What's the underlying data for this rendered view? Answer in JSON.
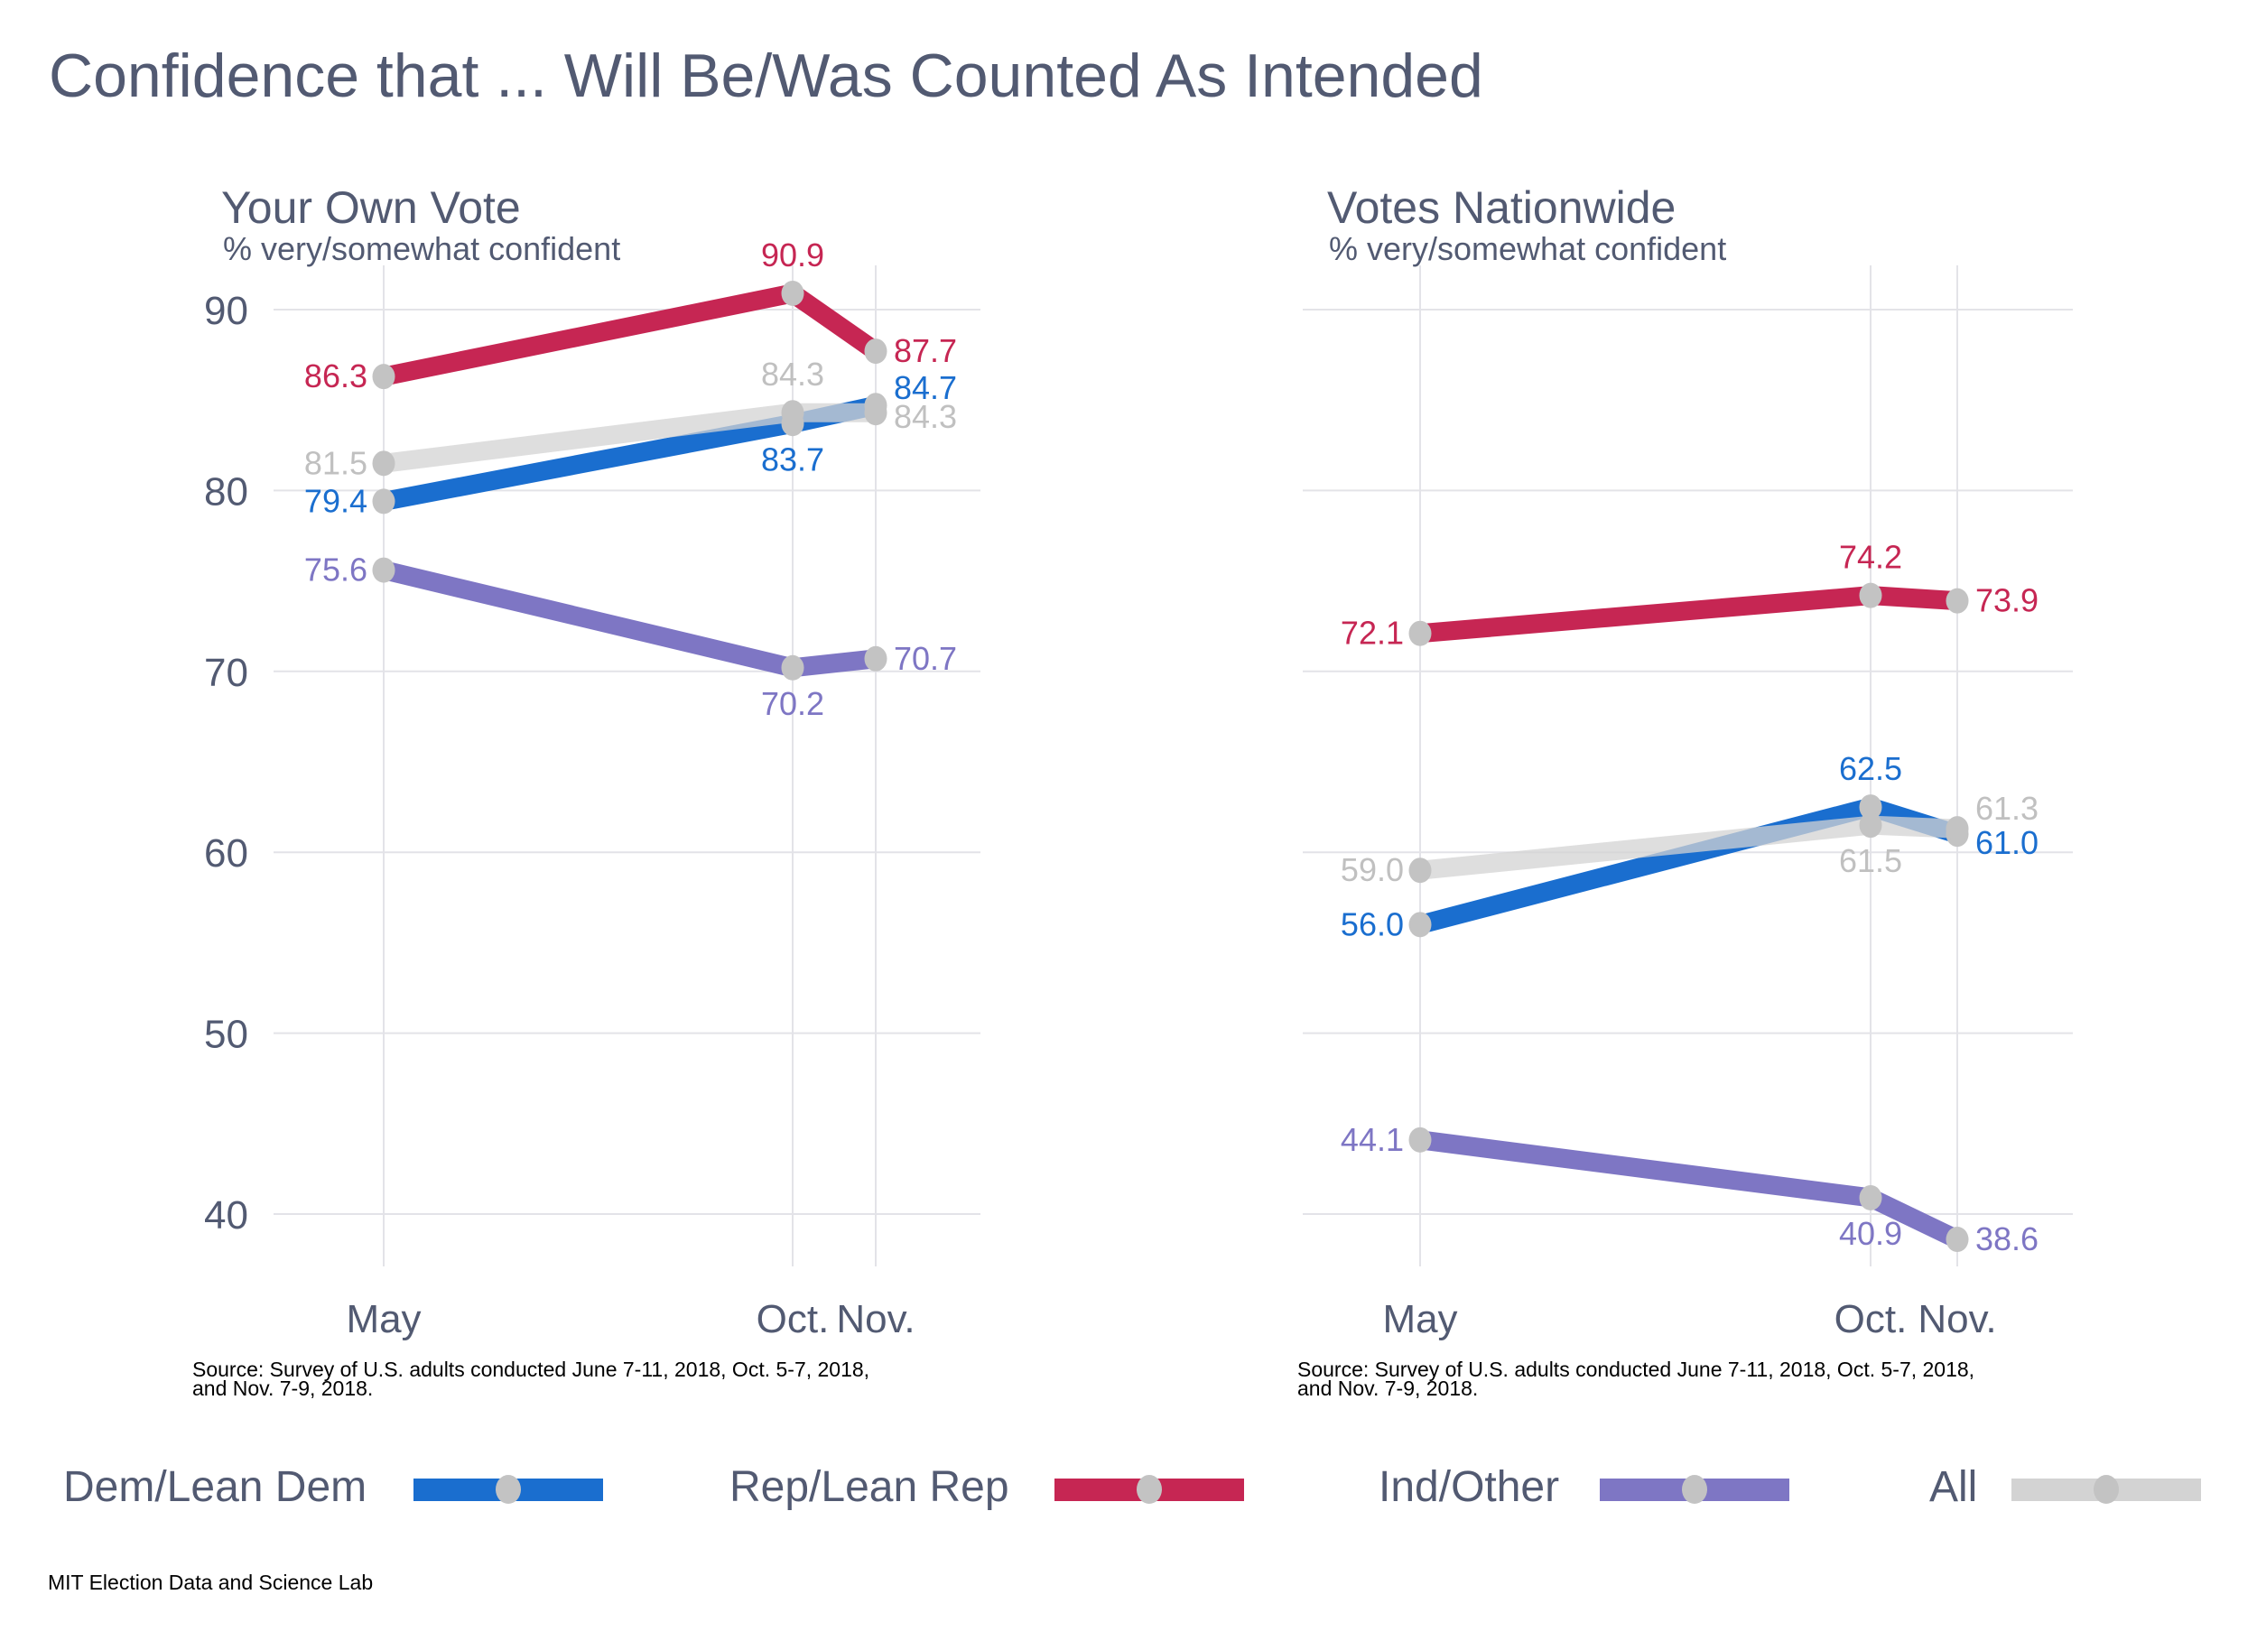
{
  "title": "Confidence that ... Will Be/Was Counted As Intended",
  "colors": {
    "dem": "#1a6ecf",
    "rep": "#c62653",
    "ind": "#7e76c4",
    "all": "#d3d3d3",
    "all_label": "#c0c0c0",
    "marker": "#c3c3c3",
    "grid": "#e3e3e8",
    "text": "#525a72"
  },
  "legend": [
    {
      "key": "dem",
      "label": "Dem/Lean Dem"
    },
    {
      "key": "rep",
      "label": "Rep/Lean Rep"
    },
    {
      "key": "ind",
      "label": "Ind/Other"
    },
    {
      "key": "all",
      "label": "All"
    }
  ],
  "footer": "MIT Election Data and Science Lab",
  "chart_data": [
    {
      "type": "line",
      "title": "Your Own Vote",
      "subtitle": "% very/somewhat confident",
      "source_line1": "Source: Survey of U.S. adults conducted June 7-11, 2018, Oct. 5-7, 2018,",
      "source_line2": "and Nov. 7-9, 2018.",
      "x": [
        "May",
        "Oct.",
        "Nov."
      ],
      "x_tick_labels": [
        "May",
        "Oct.",
        "Nov."
      ],
      "yticks": [
        40,
        50,
        60,
        70,
        80,
        90
      ],
      "ylim": [
        37.5,
        91.5
      ],
      "show_y_labels": true,
      "grid": true,
      "series": [
        {
          "key": "rep",
          "name": "Rep/Lean Rep",
          "values": [
            86.3,
            90.9,
            87.7
          ],
          "labels": [
            "86.3",
            "90.9",
            "87.7"
          ]
        },
        {
          "key": "all",
          "name": "All",
          "values": [
            81.5,
            84.3,
            84.3
          ],
          "labels": [
            "81.5",
            "84.3",
            "84.3"
          ]
        },
        {
          "key": "dem",
          "name": "Dem/Lean Dem",
          "values": [
            79.4,
            83.7,
            84.7
          ],
          "labels": [
            "79.4",
            "83.7",
            "84.7"
          ]
        },
        {
          "key": "ind",
          "name": "Ind/Other",
          "values": [
            75.6,
            70.2,
            70.7
          ],
          "labels": [
            "75.6",
            "70.2",
            "70.7"
          ]
        }
      ]
    },
    {
      "type": "line",
      "title": "Votes Nationwide",
      "subtitle": "% very/somewhat confident",
      "source_line1": "Source: Survey of U.S. adults conducted June 7-11, 2018, Oct. 5-7, 2018,",
      "source_line2": "and Nov. 7-9, 2018.",
      "x": [
        "May",
        "Oct.",
        "Nov."
      ],
      "x_tick_labels": [
        "May",
        "Oct.",
        "Nov."
      ],
      "yticks": [
        40,
        50,
        60,
        70,
        80,
        90
      ],
      "ylim": [
        37.5,
        91.5
      ],
      "show_y_labels": false,
      "grid": true,
      "series": [
        {
          "key": "rep",
          "name": "Rep/Lean Rep",
          "values": [
            72.1,
            74.2,
            73.9
          ],
          "labels": [
            "72.1",
            "74.2",
            "73.9"
          ]
        },
        {
          "key": "all",
          "name": "All",
          "values": [
            59.0,
            61.5,
            61.3
          ],
          "labels": [
            "59.0",
            "61.5",
            "61.3"
          ]
        },
        {
          "key": "dem",
          "name": "Dem/Lean Dem",
          "values": [
            56.0,
            62.5,
            61.0
          ],
          "labels": [
            "56.0",
            "62.5",
            "61.0"
          ]
        },
        {
          "key": "ind",
          "name": "Ind/Other",
          "values": [
            44.1,
            40.9,
            38.6
          ],
          "labels": [
            "44.1",
            "40.9",
            "38.6"
          ]
        }
      ]
    }
  ]
}
